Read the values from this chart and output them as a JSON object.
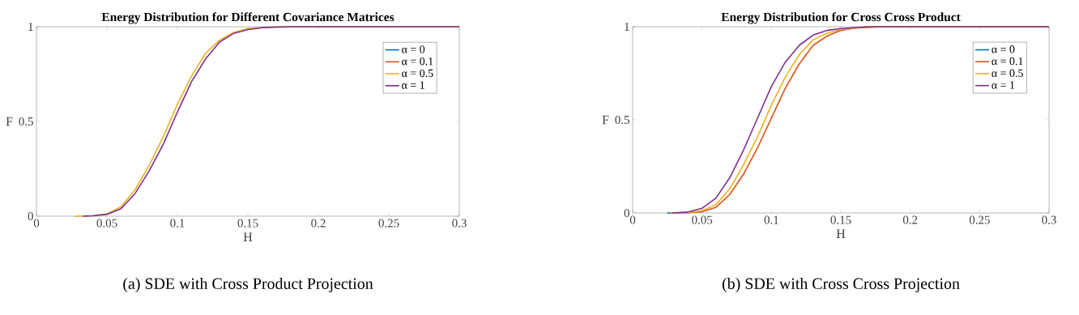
{
  "chart_data": [
    {
      "type": "line",
      "title": "Energy Distribution for Different Covariance Matrices",
      "xlabel": "H",
      "ylabel": "F",
      "annotations": [
        "(a) SDE with Cross Product Projection"
      ],
      "xlim": [
        0,
        0.3
      ],
      "ylim": [
        0,
        1
      ],
      "xticks": [
        0,
        0.05,
        0.1,
        0.15,
        0.2,
        0.25,
        0.3
      ],
      "yticks": [
        0,
        0.5,
        1
      ],
      "grid": false,
      "legend": "top right",
      "line_style": "solid",
      "marker": "none",
      "series": [
        {
          "name": "α = 0",
          "color": "#0072bd"
        },
        {
          "name": "α = 0.1",
          "color": "#d95319"
        },
        {
          "name": "α = 0.5",
          "color": "#edb120",
          "x": [
            0.027,
            0.04,
            0.05,
            0.06,
            0.07,
            0.08,
            0.09,
            0.1,
            0.11,
            0.12,
            0.13,
            0.14,
            0.15,
            0.17,
            0.3
          ],
          "values": [
            0,
            0.003,
            0.012,
            0.05,
            0.14,
            0.27,
            0.42,
            0.59,
            0.74,
            0.86,
            0.93,
            0.97,
            0.99,
            1,
            1
          ]
        },
        {
          "name": "α = 1",
          "color": "#7e2f8e",
          "x": [
            0.033,
            0.04,
            0.05,
            0.06,
            0.07,
            0.08,
            0.09,
            0.1,
            0.11,
            0.12,
            0.13,
            0.14,
            0.15,
            0.16,
            0.18,
            0.3
          ],
          "values": [
            0,
            0.002,
            0.01,
            0.04,
            0.12,
            0.24,
            0.38,
            0.55,
            0.71,
            0.83,
            0.92,
            0.965,
            0.985,
            0.995,
            1,
            1
          ]
        }
      ]
    },
    {
      "type": "line",
      "title": "Energy Distribution for Cross Cross Product",
      "xlabel": "H",
      "ylabel": "F",
      "annotations": [
        "(b) SDE with Cross Cross Projection"
      ],
      "xlim": [
        0,
        0.3
      ],
      "ylim": [
        0,
        1
      ],
      "xticks": [
        0,
        0.05,
        0.1,
        0.15,
        0.2,
        0.25,
        0.3
      ],
      "yticks": [
        0,
        0.5,
        1
      ],
      "grid": false,
      "legend": "top right",
      "line_style": "solid",
      "marker": "none",
      "series": [
        {
          "name": "α = 0",
          "color": "#0072bd",
          "x": [
            0.025,
            0.028
          ],
          "values": [
            0,
            0
          ]
        },
        {
          "name": "α = 0.1",
          "color": "#d95319",
          "x": [
            0.03,
            0.04,
            0.05,
            0.06,
            0.07,
            0.08,
            0.09,
            0.1,
            0.11,
            0.12,
            0.13,
            0.14,
            0.15,
            0.16,
            0.18,
            0.3
          ],
          "values": [
            0,
            0.001,
            0.007,
            0.03,
            0.1,
            0.21,
            0.35,
            0.51,
            0.67,
            0.8,
            0.9,
            0.95,
            0.98,
            0.993,
            1,
            1
          ]
        },
        {
          "name": "α = 0.5",
          "color": "#edb120",
          "x": [
            0.027,
            0.04,
            0.05,
            0.06,
            0.07,
            0.08,
            0.09,
            0.1,
            0.11,
            0.12,
            0.13,
            0.14,
            0.15,
            0.17,
            0.3
          ],
          "values": [
            0,
            0.002,
            0.012,
            0.045,
            0.13,
            0.26,
            0.41,
            0.58,
            0.73,
            0.85,
            0.93,
            0.965,
            0.985,
            1,
            1
          ]
        },
        {
          "name": "α = 1",
          "color": "#7e2f8e",
          "x": [
            0.028,
            0.04,
            0.05,
            0.06,
            0.07,
            0.08,
            0.09,
            0.1,
            0.11,
            0.12,
            0.13,
            0.14,
            0.15,
            0.17,
            0.3
          ],
          "values": [
            0,
            0.005,
            0.025,
            0.08,
            0.19,
            0.34,
            0.51,
            0.68,
            0.81,
            0.9,
            0.955,
            0.98,
            0.99,
            1,
            1
          ]
        }
      ]
    }
  ]
}
